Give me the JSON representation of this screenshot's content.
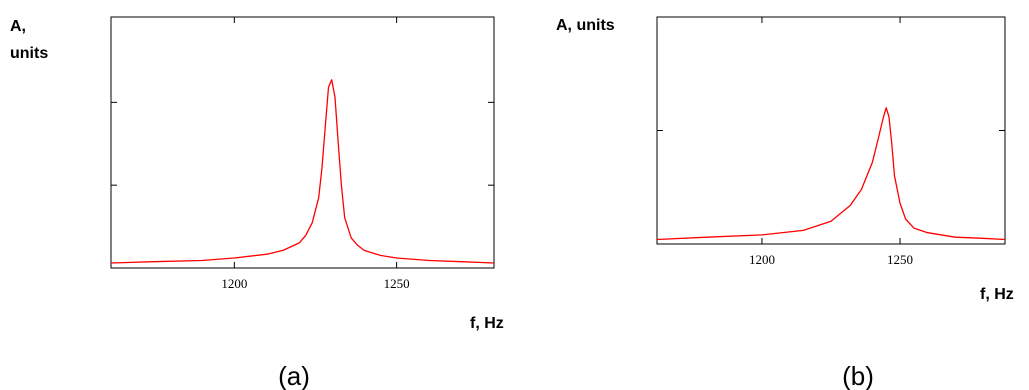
{
  "chart_data": [
    {
      "type": "line",
      "caption": "(a)",
      "ylabel_line1": "A,",
      "ylabel_line2": "units",
      "xlabel": "f, Hz",
      "xlim": [
        1162,
        1280
      ],
      "ylim": [
        0,
        1.0
      ],
      "xticks": [
        1200,
        1250
      ],
      "yticks": [
        0.33,
        0.66
      ],
      "grid": false,
      "series": [
        {
          "color": "#ff0000",
          "x": [
            1162,
            1175,
            1190,
            1200,
            1210,
            1215,
            1220,
            1222,
            1224,
            1226,
            1227,
            1228,
            1229,
            1230,
            1231,
            1232,
            1233,
            1234,
            1236,
            1238,
            1240,
            1245,
            1250,
            1260,
            1270,
            1280
          ],
          "y": [
            0.02,
            0.025,
            0.03,
            0.04,
            0.055,
            0.07,
            0.1,
            0.13,
            0.18,
            0.28,
            0.4,
            0.56,
            0.72,
            0.75,
            0.68,
            0.5,
            0.33,
            0.2,
            0.12,
            0.09,
            0.07,
            0.05,
            0.04,
            0.03,
            0.025,
            0.02
          ]
        }
      ]
    },
    {
      "type": "line",
      "caption": "(b)",
      "ylabel_line1": "A, units",
      "ylabel_line2": "",
      "xlabel": "f, Hz",
      "xlim": [
        1162,
        1288
      ],
      "ylim": [
        0,
        1.0
      ],
      "xticks": [
        1200,
        1250
      ],
      "yticks": [
        0.5
      ],
      "grid": false,
      "series": [
        {
          "color": "#ff0000",
          "x": [
            1162,
            1180,
            1200,
            1215,
            1225,
            1232,
            1236,
            1240,
            1242,
            1244,
            1245,
            1246,
            1247,
            1248,
            1250,
            1252,
            1255,
            1260,
            1270,
            1280,
            1288
          ],
          "y": [
            0.02,
            0.03,
            0.04,
            0.06,
            0.1,
            0.17,
            0.24,
            0.36,
            0.46,
            0.56,
            0.6,
            0.56,
            0.44,
            0.3,
            0.18,
            0.11,
            0.07,
            0.05,
            0.03,
            0.025,
            0.02
          ]
        }
      ]
    }
  ]
}
